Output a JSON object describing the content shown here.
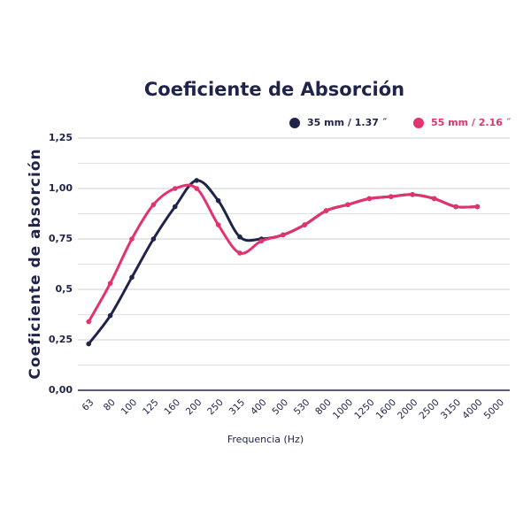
{
  "chart_data": {
    "type": "line",
    "title": "Coeficiente de Absorción",
    "x_label": "Frequencia (Hz)",
    "y_label": "Coeficiente de absorción",
    "categories": [
      "63",
      "80",
      "100",
      "125",
      "160",
      "200",
      "250",
      "315",
      "400",
      "500",
      "530",
      "800",
      "1000",
      "1250",
      "1600",
      "2000",
      "2500",
      "3150",
      "4000",
      "5000"
    ],
    "series": [
      {
        "name": "35 mm / 1.37 ˝",
        "color": "#21244a",
        "values": [
          0.23,
          0.37,
          0.56,
          0.75,
          0.91,
          1.04,
          0.94,
          0.76,
          0.75,
          0.77,
          0.82,
          0.89,
          0.92,
          0.95,
          0.96,
          0.97,
          0.95,
          0.91,
          0.91,
          null
        ]
      },
      {
        "name": "55 mm / 2.16 ˝",
        "color": "#e0336f",
        "values": [
          0.34,
          0.53,
          0.75,
          0.92,
          1.0,
          1.0,
          0.82,
          0.68,
          0.74,
          0.77,
          0.82,
          0.89,
          0.92,
          0.95,
          0.96,
          0.97,
          0.95,
          0.91,
          0.91,
          null
        ]
      }
    ],
    "ylim": [
      0,
      1.25
    ],
    "yticks": [
      {
        "value": 0,
        "label": "0,00"
      },
      {
        "value": 0.25,
        "label": "0,25"
      },
      {
        "value": 0.5,
        "label": "0,5"
      },
      {
        "value": 0.75,
        "label": "0,75"
      },
      {
        "value": 1,
        "label": "1,00"
      },
      {
        "value": 1.25,
        "label": "1,25"
      }
    ],
    "minor_yticks": [
      0.125,
      0.375,
      0.625,
      0.875,
      1.125
    ],
    "grid": true,
    "legend": "top"
  }
}
